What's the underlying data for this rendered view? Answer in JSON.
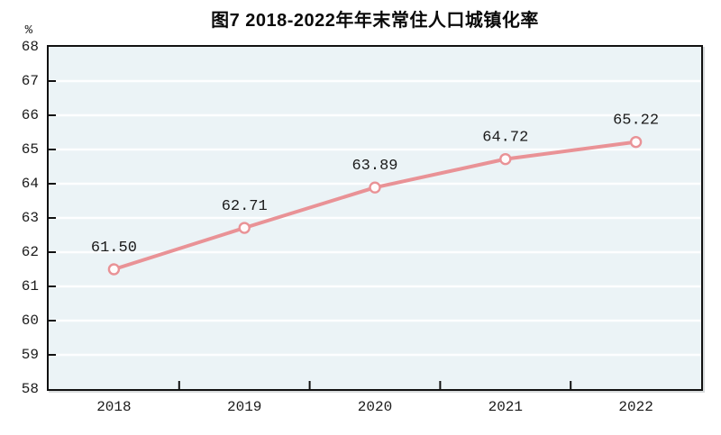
{
  "chart_data": {
    "type": "line",
    "title": "图7  2018-2022年年末常住人口城镇化率",
    "unit": "%",
    "categories": [
      "2018",
      "2019",
      "2020",
      "2021",
      "2022"
    ],
    "series": [
      {
        "name": "年末常住人口城镇化率",
        "values": [
          61.5,
          62.71,
          63.89,
          64.72,
          65.22
        ],
        "labels": [
          "61.50",
          "62.71",
          "63.89",
          "64.72",
          "65.22"
        ]
      }
    ],
    "xlabel": "",
    "ylabel": "%",
    "ylim": [
      58,
      68
    ],
    "ytick_step": 1,
    "ytick_labels": [
      "58",
      "59",
      "60",
      "61",
      "62",
      "63",
      "64",
      "65",
      "66",
      "67",
      "68"
    ],
    "grid": "horizontal",
    "legend": "none",
    "colors": {
      "line": "#e99296",
      "marker_fill": "#fffcfc",
      "plot_background": "#ebf3f6",
      "gridline": "#fdfeff",
      "axis_border": "#111111",
      "tick": "#111111",
      "text": "#1a1a1a",
      "title_text": "#0a0a0a"
    }
  }
}
